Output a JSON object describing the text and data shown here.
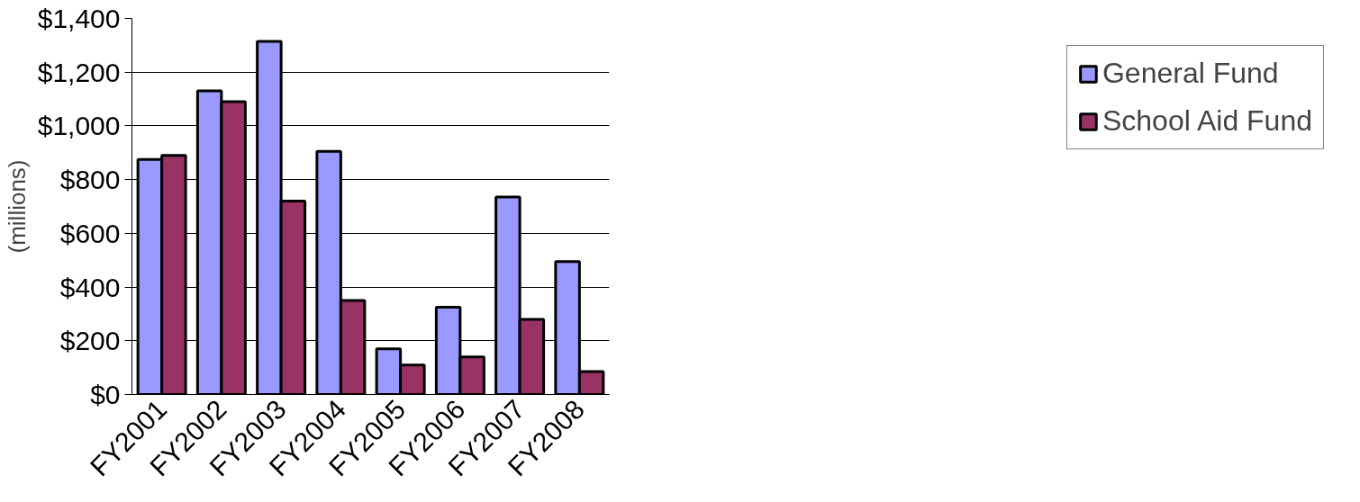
{
  "chart_data": {
    "type": "bar",
    "ylabel": "(millions)",
    "categories": [
      "FY2001",
      "FY2002",
      "FY2003",
      "FY2004",
      "FY2005",
      "FY2006",
      "FY2007",
      "FY2008"
    ],
    "series": [
      {
        "name": "General Fund",
        "color": "#9999ff",
        "values": [
          875,
          1130,
          1315,
          905,
          170,
          325,
          735,
          495
        ]
      },
      {
        "name": "School Aid Fund",
        "color": "#993366",
        "values": [
          890,
          1090,
          720,
          350,
          110,
          140,
          280,
          85
        ]
      }
    ],
    "ylim": [
      0,
      1400
    ],
    "yticks": [
      {
        "value": 0,
        "label": "$0"
      },
      {
        "value": 200,
        "label": "$200"
      },
      {
        "value": 400,
        "label": "$400"
      },
      {
        "value": 600,
        "label": "$600"
      },
      {
        "value": 800,
        "label": "$800"
      },
      {
        "value": 1000,
        "label": "$1,000"
      },
      {
        "value": 1200,
        "label": "$1,200"
      },
      {
        "value": 1400,
        "label": "$1,400"
      }
    ],
    "grid": "y",
    "legend": "right"
  }
}
